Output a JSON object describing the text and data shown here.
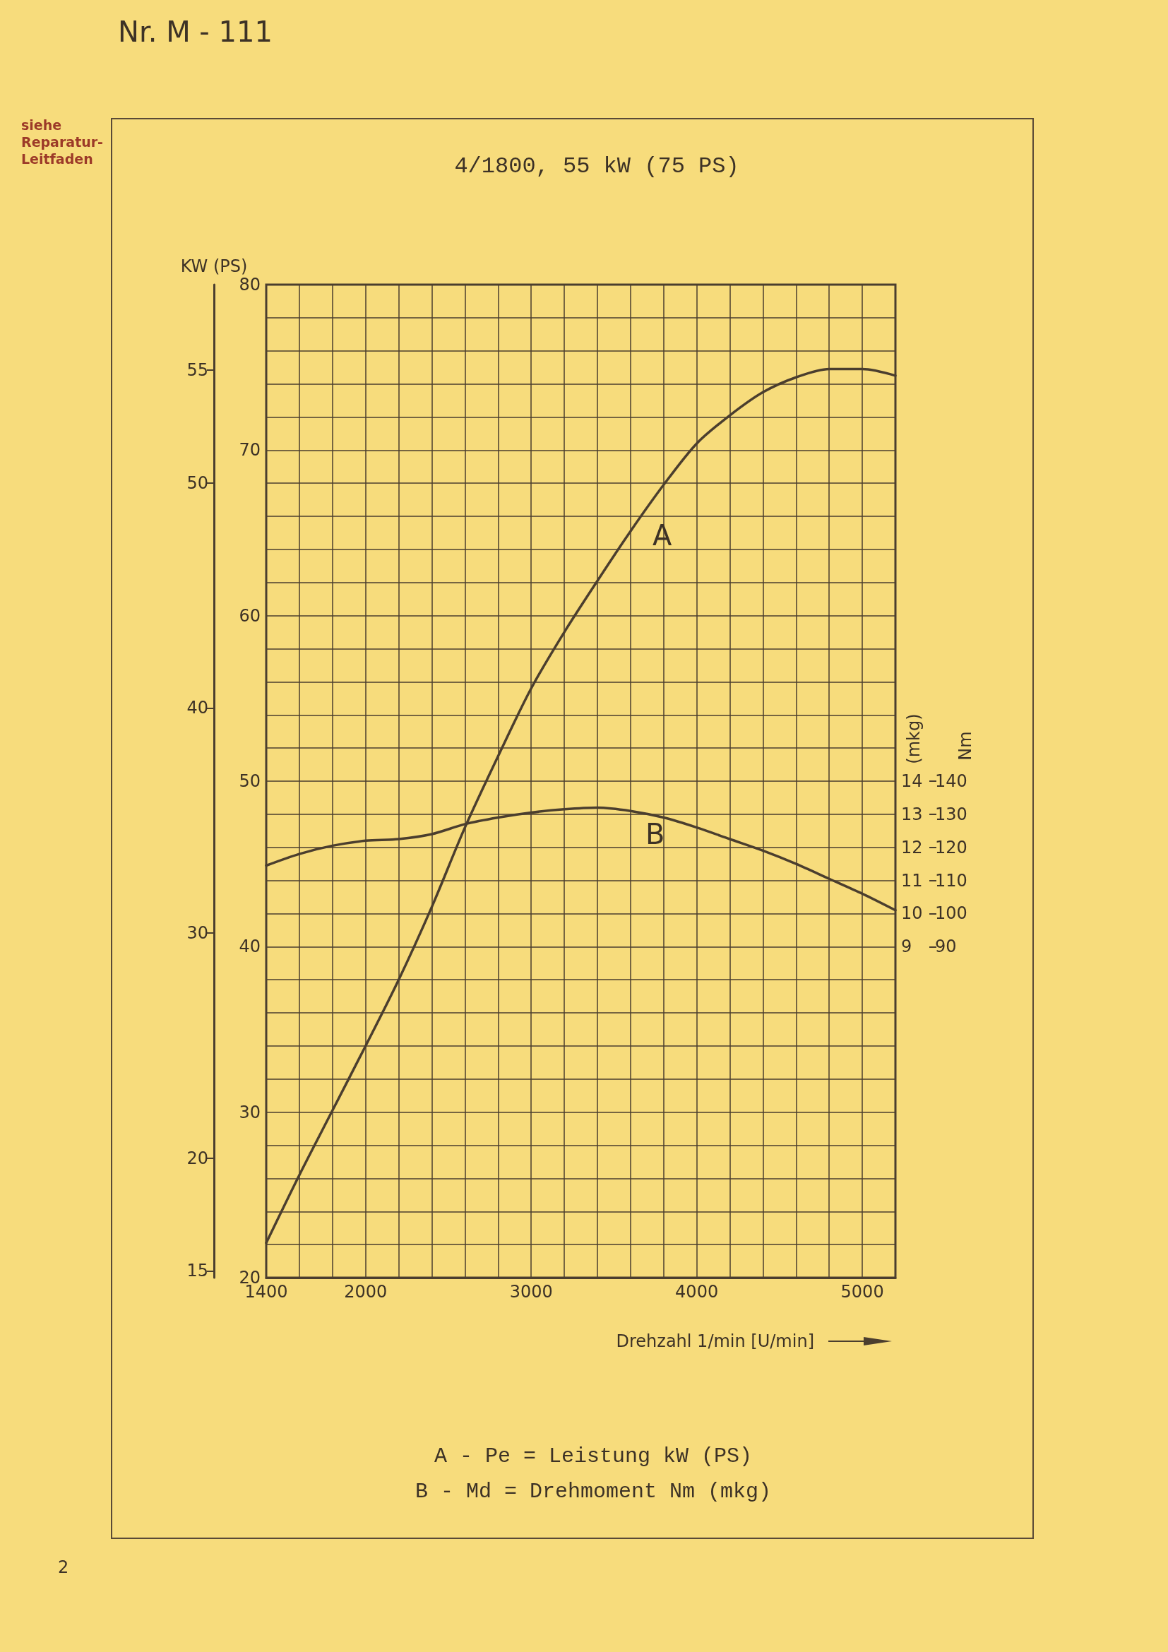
{
  "chart_data": {
    "type": "line",
    "title": "4/1800, 55 kW (75 PS)",
    "xlabel": "Drehzahl 1/min [U/min]",
    "ylabel": "KW (PS)",
    "y2label": "(mkg)",
    "x": [
      1400,
      1600,
      1800,
      2000,
      2200,
      2400,
      2600,
      2800,
      3000,
      3200,
      3400,
      3600,
      3800,
      4000,
      4200,
      4400,
      4600,
      4800,
      5000,
      5200
    ],
    "series": [
      {
        "color": "#4b3e2e",
        "values": [
          22.1,
          26.2,
          30.1,
          34.0,
          38.0,
          42.4,
          47.2,
          51.5,
          55.6,
          59.0,
          62.1,
          65.1,
          67.9,
          70.4,
          72.1,
          73.5,
          74.4,
          74.9,
          74.9,
          74.5
        ]
      },
      {
        "color": "#4b3e2e",
        "axis": "y2",
        "values": [
          11.45,
          11.8,
          12.05,
          12.2,
          12.25,
          12.4,
          12.7,
          12.9,
          13.05,
          13.15,
          13.2,
          13.1,
          12.9,
          12.6,
          12.25,
          11.9,
          11.5,
          11.05,
          10.6,
          10.1
        ]
      }
    ],
    "xlim": [
      1400,
      5200
    ],
    "xticks": [
      1400,
      {
        "value": 1600,
        "label": null
      },
      {
        "value": 1800,
        "label": null
      },
      2000,
      {
        "value": 2200,
        "label": null
      },
      {
        "value": 2400,
        "label": null
      },
      {
        "value": 2600,
        "label": null
      },
      {
        "value": 2800,
        "label": null
      },
      3000,
      {
        "value": 3200,
        "label": null
      },
      {
        "value": 3400,
        "label": null
      },
      {
        "value": 3600,
        "label": null
      },
      {
        "value": 3800,
        "label": null
      },
      4000,
      {
        "value": 4200,
        "label": null
      },
      {
        "value": 4400,
        "label": null
      },
      {
        "value": 4600,
        "label": null
      },
      {
        "value": 4800,
        "label": null
      },
      5000,
      {
        "value": 5200,
        "label": null
      }
    ],
    "ylim": [
      20,
      80
    ],
    "yticks": [
      20,
      {
        "value": 22,
        "label": null
      },
      {
        "value": 24,
        "label": null
      },
      {
        "value": 26,
        "label": null
      },
      {
        "value": 28,
        "label": null
      },
      30,
      {
        "value": 32,
        "label": null
      },
      {
        "value": 34,
        "label": null
      },
      {
        "value": 36,
        "label": null
      },
      {
        "value": 38,
        "label": null
      },
      40,
      {
        "value": 42,
        "label": null
      },
      {
        "value": 44,
        "label": null
      },
      {
        "value": 46,
        "label": null
      },
      {
        "value": 48,
        "label": null
      },
      50,
      {
        "value": 52,
        "label": null
      },
      {
        "value": 54,
        "label": null
      },
      {
        "value": 56,
        "label": null
      },
      {
        "value": 58,
        "label": null
      },
      60,
      {
        "value": 62,
        "label": null
      },
      {
        "value": 64,
        "label": null
      },
      {
        "value": 66,
        "label": null
      },
      {
        "value": 68,
        "label": null
      },
      70,
      {
        "value": 72,
        "label": null
      },
      {
        "value": 74,
        "label": null
      },
      {
        "value": 76,
        "label": null
      },
      {
        "value": 78,
        "label": null
      },
      80
    ],
    "y2lim": [
      -1,
      29
    ],
    "y2ticks": [
      9,
      10,
      11,
      12,
      13,
      14
    ],
    "y3lim": [
      14.7,
      58.8
    ],
    "y3ticks": [
      15,
      20,
      30,
      40,
      50,
      55
    ],
    "grid": true,
    "marker": "none",
    "line_style": "solid",
    "annotations": [
      "Nr. M - 111",
      "siehe Reparatur-Leitfaden",
      "A - Pe = Leistung kW (PS)",
      "B - Md = Drehmoment Nm (mkg)",
      "2",
      "A",
      "B",
      "Nm",
      "90",
      "100",
      "110",
      "120",
      "130",
      "140"
    ]
  }
}
